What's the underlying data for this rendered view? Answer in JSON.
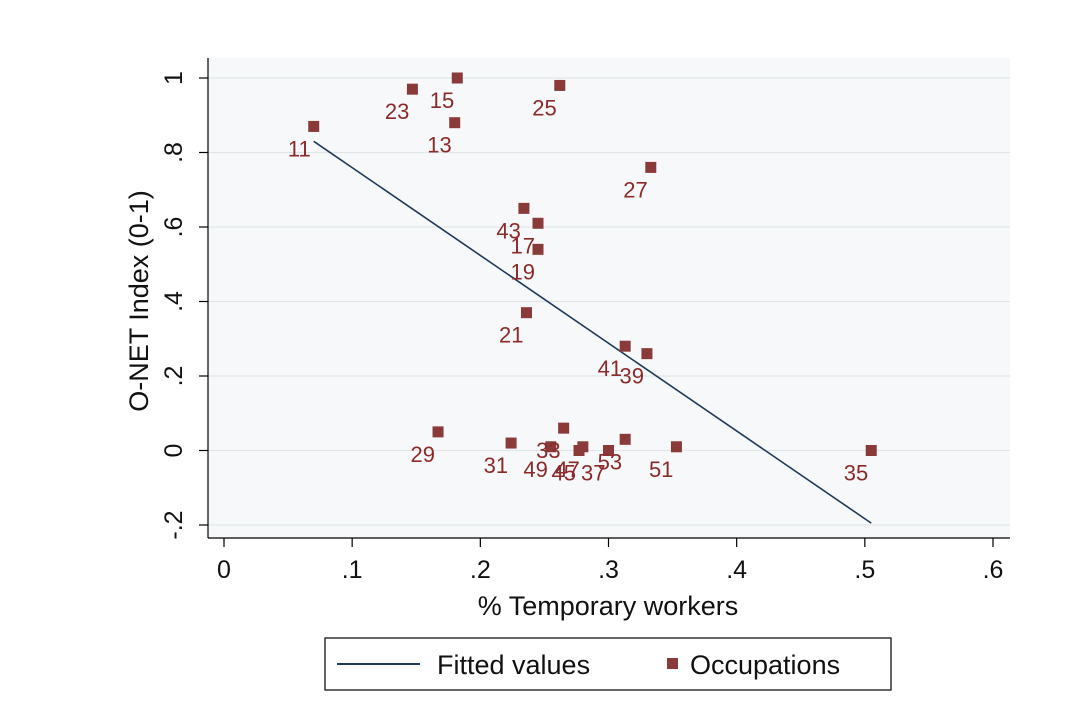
{
  "chart_data": {
    "type": "scatter",
    "xlabel": "% Temporary workers",
    "ylabel": "O-NET Index (0-1)",
    "xlim": [
      0,
      0.6
    ],
    "ylim": [
      -0.2,
      1.0
    ],
    "x_ticks": [
      0,
      0.1,
      0.2,
      0.3,
      0.4,
      0.5,
      0.6
    ],
    "x_tick_labels": [
      "0",
      ".1",
      ".2",
      ".3",
      ".4",
      ".5",
      ".6"
    ],
    "y_ticks": [
      -0.2,
      0,
      0.2,
      0.4,
      0.6,
      0.8,
      1.0
    ],
    "y_tick_labels": [
      "-.2",
      "0",
      ".2",
      ".4",
      ".6",
      ".8",
      "1"
    ],
    "grid": true,
    "legend": {
      "position": "bottom",
      "entries": [
        {
          "label": "Fitted values",
          "kind": "line"
        },
        {
          "label": "Occupations",
          "kind": "marker"
        }
      ]
    },
    "colors": {
      "points": "#8b3a3a",
      "labels": "#8b2a2a",
      "fit_line": "#1f3b57",
      "plot_bg": "#f7f8fa",
      "grid": "#dfe6ea"
    },
    "series": [
      {
        "name": "Occupations",
        "kind": "scatter",
        "points": [
          {
            "label": "11",
            "x": 0.07,
            "y": 0.87
          },
          {
            "label": "13",
            "x": 0.18,
            "y": 0.88
          },
          {
            "label": "15",
            "x": 0.182,
            "y": 1.0
          },
          {
            "label": "23",
            "x": 0.147,
            "y": 0.97
          },
          {
            "label": "25",
            "x": 0.262,
            "y": 0.98
          },
          {
            "label": "27",
            "x": 0.333,
            "y": 0.76
          },
          {
            "label": "43",
            "x": 0.234,
            "y": 0.65
          },
          {
            "label": "17",
            "x": 0.245,
            "y": 0.61
          },
          {
            "label": "19",
            "x": 0.245,
            "y": 0.54
          },
          {
            "label": "21",
            "x": 0.236,
            "y": 0.37
          },
          {
            "label": "41",
            "x": 0.313,
            "y": 0.28
          },
          {
            "label": "39",
            "x": 0.33,
            "y": 0.26
          },
          {
            "label": "29",
            "x": 0.167,
            "y": 0.05
          },
          {
            "label": "31",
            "x": 0.224,
            "y": 0.02
          },
          {
            "label": "33",
            "x": 0.265,
            "y": 0.06
          },
          {
            "label": "49",
            "x": 0.255,
            "y": 0.01
          },
          {
            "label": "45",
            "x": 0.277,
            "y": 0.0
          },
          {
            "label": "47",
            "x": 0.28,
            "y": 0.01
          },
          {
            "label": "37",
            "x": 0.3,
            "y": 0.0
          },
          {
            "label": "53",
            "x": 0.313,
            "y": 0.03
          },
          {
            "label": "51",
            "x": 0.353,
            "y": 0.01
          },
          {
            "label": "35",
            "x": 0.505,
            "y": 0.0
          }
        ]
      },
      {
        "name": "Fitted values",
        "kind": "line",
        "points": [
          {
            "x": 0.07,
            "y": 0.83
          },
          {
            "x": 0.505,
            "y": -0.195
          }
        ]
      }
    ]
  }
}
